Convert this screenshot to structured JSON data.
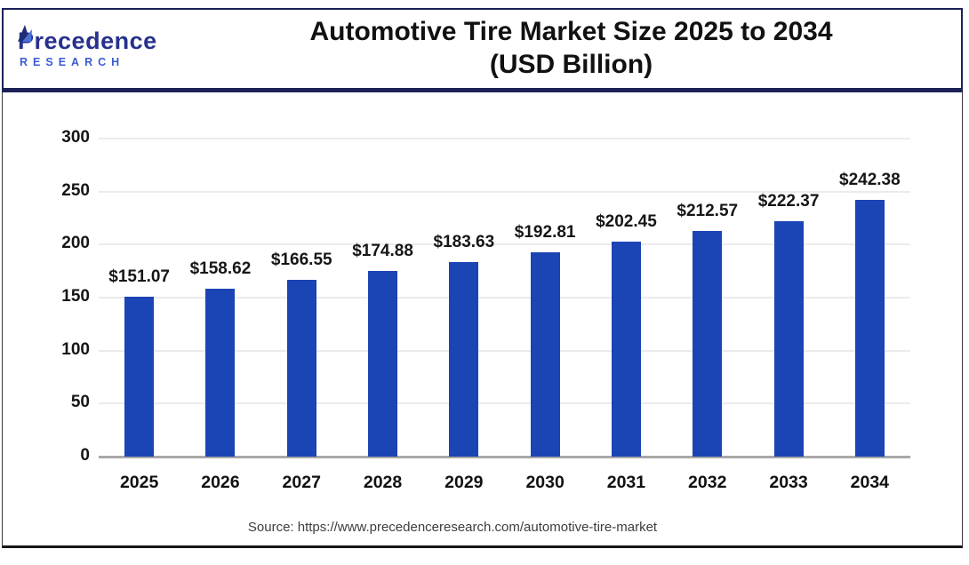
{
  "header": {
    "brand_initial": "P",
    "brand_rest": "recedence",
    "brand_line2": "RESEARCH",
    "title_line1": "Automotive Tire Market Size 2025 to 2034",
    "title_line2": "(USD Billion)"
  },
  "chart_data": {
    "type": "bar",
    "title": "Automotive Tire Market Size 2025 to 2034 (USD Billion)",
    "categories": [
      "2025",
      "2026",
      "2027",
      "2028",
      "2029",
      "2030",
      "2031",
      "2032",
      "2033",
      "2034"
    ],
    "values": [
      151.07,
      158.62,
      166.55,
      174.88,
      183.63,
      192.81,
      202.45,
      212.57,
      222.37,
      242.38
    ],
    "value_labels": [
      "$151.07",
      "$158.62",
      "$166.55",
      "$174.88",
      "$183.63",
      "$192.81",
      "$202.45",
      "$212.57",
      "$222.37",
      "$242.38"
    ],
    "xlabel": "",
    "ylabel": "",
    "ylim": [
      0,
      300
    ],
    "yticks": [
      0,
      50,
      100,
      150,
      200,
      250,
      300
    ],
    "grid": true,
    "legend_position": "none",
    "colors": {
      "bar": "#1B44B4",
      "grid": "#EBEBEB",
      "axis": "#A8A8A8"
    }
  },
  "footer": {
    "source": "Source: https://www.precedenceresearch.com/automotive-tire-market"
  }
}
